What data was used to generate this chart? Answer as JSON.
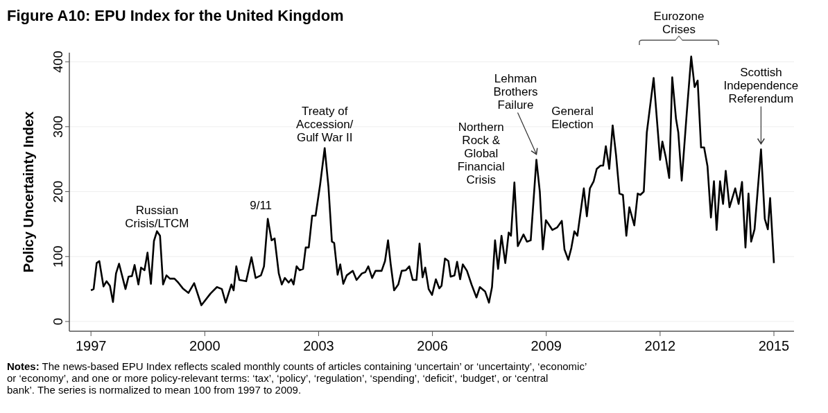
{
  "chart_data": {
    "type": "line",
    "title": "Figure A10: EPU Index for the United Kingdom",
    "ylabel": "Policy Uncertainty Index",
    "xlim": [
      1996.43,
      2015.53
    ],
    "xticks": [
      1997,
      2000,
      2003,
      2006,
      2009,
      2012,
      2015
    ],
    "ylim": [
      -15,
      414
    ],
    "yticks": [
      0,
      100,
      200,
      300,
      400
    ],
    "grid": "y",
    "marker": "none",
    "line_style": "solid",
    "series": [
      {
        "color": "#000000",
        "x": [
          1997.0,
          1997.07,
          1997.15,
          1997.22,
          1997.33,
          1997.41,
          1997.5,
          1997.58,
          1997.66,
          1997.74,
          1997.91,
          1997.99,
          1998.08,
          1998.15,
          1998.25,
          1998.32,
          1998.41,
          1998.49,
          1998.58,
          1998.66,
          1998.74,
          1998.82,
          1998.9,
          1998.99,
          1999.08,
          1999.2,
          1999.3,
          1999.42,
          1999.57,
          1999.72,
          1999.91,
          2000.15,
          2000.32,
          2000.45,
          2000.55,
          2000.7,
          2000.76,
          2000.83,
          2000.91,
          2001.09,
          2001.23,
          2001.34,
          2001.48,
          2001.56,
          2001.66,
          2001.76,
          2001.84,
          2001.95,
          2002.03,
          2002.11,
          2002.21,
          2002.28,
          2002.34,
          2002.42,
          2002.5,
          2002.59,
          2002.66,
          2002.74,
          2002.83,
          2002.92,
          2003.04,
          2003.16,
          2003.26,
          2003.35,
          2003.41,
          2003.5,
          2003.57,
          2003.65,
          2003.74,
          2003.9,
          2004.0,
          2004.14,
          2004.23,
          2004.31,
          2004.41,
          2004.5,
          2004.66,
          2004.75,
          2004.83,
          2004.9,
          2004.99,
          2005.1,
          2005.19,
          2005.3,
          2005.39,
          2005.48,
          2005.58,
          2005.66,
          2005.74,
          2005.81,
          2005.9,
          2005.99,
          2006.09,
          2006.18,
          2006.24,
          2006.33,
          2006.42,
          2006.48,
          2006.58,
          2006.65,
          2006.73,
          2006.8,
          2006.91,
          2007.03,
          2007.16,
          2007.25,
          2007.39,
          2007.49,
          2007.57,
          2007.65,
          2007.73,
          2007.82,
          2007.92,
          2008.01,
          2008.07,
          2008.16,
          2008.25,
          2008.4,
          2008.49,
          2008.59,
          2008.74,
          2008.83,
          2008.91,
          2008.99,
          2009.07,
          2009.16,
          2009.29,
          2009.41,
          2009.48,
          2009.58,
          2009.66,
          2009.74,
          2009.82,
          2009.99,
          2010.07,
          2010.15,
          2010.25,
          2010.33,
          2010.43,
          2010.5,
          2010.57,
          2010.66,
          2010.75,
          2010.84,
          2010.93,
          2011.02,
          2011.11,
          2011.19,
          2011.32,
          2011.41,
          2011.48,
          2011.57,
          2011.65,
          2011.83,
          2012.0,
          2012.06,
          2012.15,
          2012.24,
          2012.32,
          2012.42,
          2012.48,
          2012.57,
          2012.7,
          2012.82,
          2012.91,
          2012.99,
          2013.08,
          2013.16,
          2013.25,
          2013.34,
          2013.42,
          2013.49,
          2013.58,
          2013.66,
          2013.73,
          2013.83,
          2013.98,
          2014.07,
          2014.16,
          2014.25,
          2014.33,
          2014.4,
          2014.49,
          2014.66,
          2014.76,
          2014.84,
          2014.9,
          2015.0
        ],
        "values": [
          48,
          50,
          90,
          93,
          54,
          62,
          55,
          30,
          74,
          89,
          50,
          69,
          70,
          87,
          57,
          83,
          79,
          106,
          58,
          124,
          139,
          132,
          57,
          71,
          66,
          66,
          60,
          51,
          44,
          59,
          25,
          43,
          53,
          50,
          29,
          57,
          48,
          85,
          64,
          62,
          99,
          67,
          71,
          85,
          158,
          125,
          128,
          74,
          57,
          67,
          60,
          65,
          57,
          85,
          79,
          81,
          114,
          114,
          163,
          163,
          211,
          267,
          207,
          123,
          121,
          72,
          88,
          58,
          71,
          78,
          64,
          74,
          76,
          85,
          67,
          78,
          78,
          93,
          125,
          88,
          48,
          57,
          78,
          79,
          85,
          64,
          64,
          120,
          68,
          83,
          50,
          41,
          65,
          51,
          55,
          97,
          93,
          69,
          71,
          92,
          65,
          88,
          78,
          57,
          37,
          53,
          46,
          29,
          53,
          125,
          81,
          132,
          90,
          137,
          132,
          214,
          116,
          134,
          123,
          125,
          249,
          200,
          111,
          156,
          149,
          141,
          145,
          155,
          111,
          95,
          113,
          139,
          132,
          205,
          162,
          205,
          216,
          235,
          240,
          240,
          270,
          235,
          302,
          256,
          197,
          195,
          132,
          176,
          148,
          197,
          195,
          200,
          291,
          375,
          249,
          277,
          253,
          221,
          376,
          312,
          291,
          217,
          319,
          408,
          361,
          371,
          268,
          268,
          239,
          160,
          216,
          141,
          216,
          181,
          232,
          176,
          205,
          181,
          215,
          114,
          197,
          123,
          142,
          265,
          158,
          142,
          190,
          90
        ]
      }
    ],
    "annotations": [
      {
        "text": "Russian\nCrisis/LTCM",
        "x": 1998.74,
        "y": 139
      },
      {
        "text": "9/11",
        "x": 2001.66,
        "y": 158
      },
      {
        "text": "Treaty of\nAccession/\nGulf War II",
        "x": 2003.16,
        "y": 267
      },
      {
        "text": "Northern\nRock &\nGlobal\nFinancial\nCrisis",
        "x": 2008.16,
        "y": 214
      },
      {
        "text": "Lehman\nBrothers\nFailure",
        "x": 2008.74,
        "y": 249
      },
      {
        "text": "General\nElection",
        "x": 2010.75,
        "y": 302
      },
      {
        "text": "Scottish\nIndependence\nReferendum",
        "x": 2014.66,
        "y": 265
      },
      "Eurozone\nCrises",
      "Notes: The news-based EPU Index reflects scaled monthly counts of articles containing ‘uncertain’ or ‘uncertainty’, ‘economic’ or ‘economy’, and one or more policy-relevant terms: ‘tax’, ‘policy’, ‘regulation’, ‘spending’, ‘deficit’, ‘budget’, or ‘central bank’. The series is normalized to mean 100 from 1997 to 2009."
    ]
  }
}
